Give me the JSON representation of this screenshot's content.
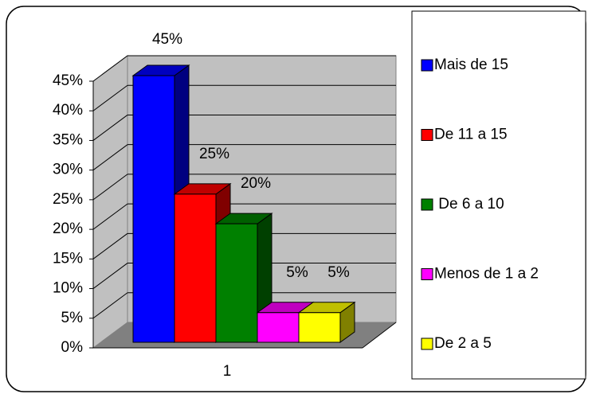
{
  "chart_data": {
    "type": "bar3d",
    "categories": [
      "1"
    ],
    "series": [
      {
        "name": "Mais de 15",
        "color": "#0000ff",
        "values": [
          45
        ],
        "value_labels": [
          "45%"
        ]
      },
      {
        "name": "De 11 a 15",
        "color": "#ff0000",
        "values": [
          25
        ],
        "value_labels": [
          "25%"
        ]
      },
      {
        "name": " De 6 a 10",
        "color": "#008000",
        "values": [
          20
        ],
        "value_labels": [
          "20%"
        ]
      },
      {
        "name": "Menos de 1 a 2",
        "color": "#ff00ff",
        "values": [
          5
        ],
        "value_labels": [
          "5%"
        ]
      },
      {
        "name": "De 2 a 5",
        "color": "#ffff00",
        "values": [
          5
        ],
        "value_labels": [
          "5%"
        ]
      }
    ],
    "ylim": [
      0,
      45
    ],
    "yticks": [
      {
        "value": 0,
        "label": "0%"
      },
      {
        "value": 5,
        "label": "5%"
      },
      {
        "value": 10,
        "label": "10%"
      },
      {
        "value": 15,
        "label": "15%"
      },
      {
        "value": 20,
        "label": "20%"
      },
      {
        "value": 25,
        "label": "25%"
      },
      {
        "value": 30,
        "label": "30%"
      },
      {
        "value": 35,
        "label": "35%"
      },
      {
        "value": 40,
        "label": "40%"
      },
      {
        "value": 45,
        "label": "45%"
      }
    ],
    "grid": true,
    "legend": "right"
  }
}
